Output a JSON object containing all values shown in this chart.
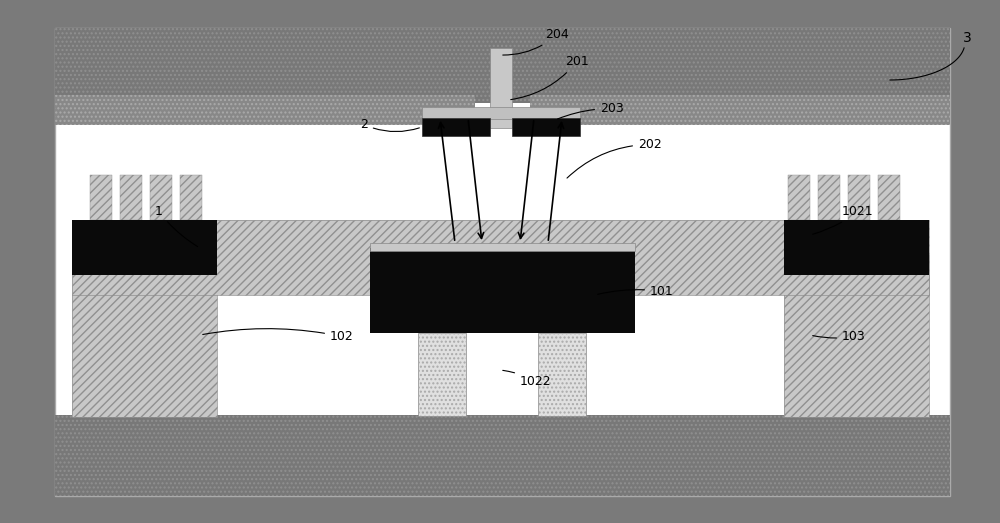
{
  "fig_width": 10.0,
  "fig_height": 5.23,
  "dpi": 100,
  "bg_outer": "#7a7a7a",
  "bg_inner": "#ffffff",
  "color_dark": "#686868",
  "color_black": "#0a0a0a",
  "color_hatch_fill": "#c8c8c8",
  "color_post_fill": "#e8e8e8",
  "color_mirror": "#d0d0d0"
}
